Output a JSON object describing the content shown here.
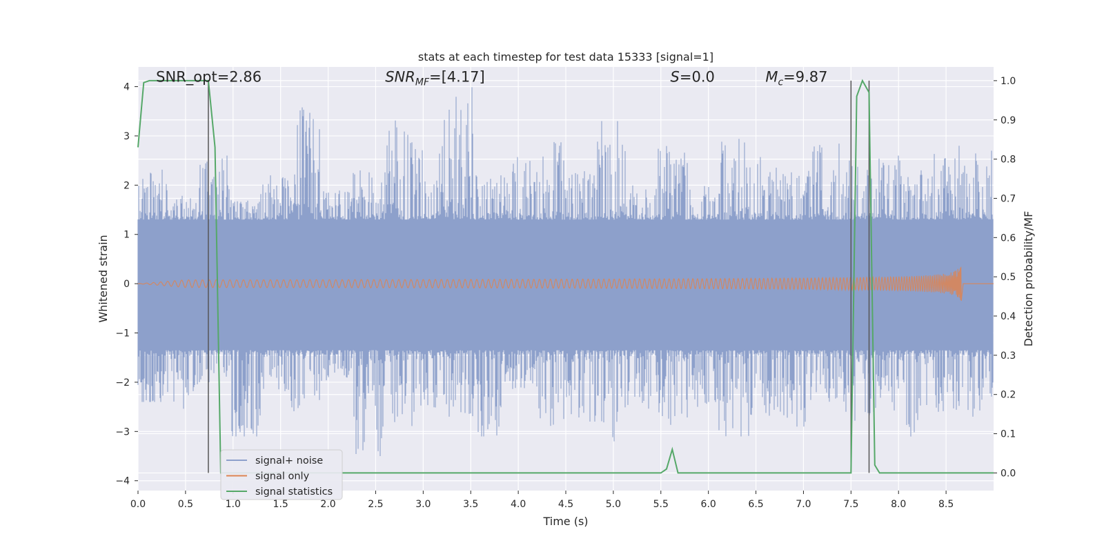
{
  "chart_data": {
    "type": "line",
    "title": "stats at each timestep for test data 15333 [signal=1]",
    "xlabel": "Time (s)",
    "ylabel_left": "Whitened strain",
    "ylabel_right": "Detection probability/MF",
    "xlim": [
      0.0,
      9.0
    ],
    "ylim_left": [
      -4.2,
      4.4
    ],
    "ylim_right": [
      -0.045,
      1.035
    ],
    "x_ticks": [
      0.0,
      0.5,
      1.0,
      1.5,
      2.0,
      2.5,
      3.0,
      3.5,
      4.0,
      4.5,
      5.0,
      5.5,
      6.0,
      6.5,
      7.0,
      7.5,
      8.0,
      8.5
    ],
    "x_tick_labels": [
      "0.0",
      "0.5",
      "1.0",
      "1.5",
      "2.0",
      "2.5",
      "3.0",
      "3.5",
      "4.0",
      "4.5",
      "5.0",
      "5.5",
      "6.0",
      "6.5",
      "7.0",
      "7.5",
      "8.0",
      "8.5"
    ],
    "y_left_ticks": [
      -4,
      -3,
      -2,
      -1,
      0,
      1,
      2,
      3,
      4
    ],
    "y_left_tick_labels": [
      "−4",
      "−3",
      "−2",
      "−1",
      "0",
      "1",
      "2",
      "3",
      "4"
    ],
    "y_right_ticks": [
      0.0,
      0.1,
      0.2,
      0.3,
      0.4,
      0.5,
      0.6,
      0.7,
      0.8,
      0.9,
      1.0
    ],
    "y_right_tick_labels": [
      "0.0",
      "0.1",
      "0.2",
      "0.3",
      "0.4",
      "0.5",
      "0.6",
      "0.7",
      "0.8",
      "0.9",
      "1.0"
    ],
    "grid": true,
    "legend_position": "lower-left",
    "annotations": [
      {
        "id": "snr-opt",
        "text": "SNR_opt=2.86",
        "x": 0.19,
        "y": 4.1
      },
      {
        "id": "snr-mf",
        "text": "SNR_MF=[4.17]",
        "x": 2.6,
        "y": 4.1
      },
      {
        "id": "s-stat",
        "text": "S=0.0",
        "x": 5.6,
        "y": 4.1
      },
      {
        "id": "mc",
        "text": "M_c=9.87",
        "x": 6.6,
        "y": 4.1
      }
    ],
    "markers_x": [
      0.74,
      7.5,
      7.69
    ],
    "series": [
      {
        "name": "signal+ noise",
        "color": "#8da0cb",
        "kind": "noise",
        "core_band": [
          -1.35,
          1.3
        ],
        "spike_sample_max": [
          2.5,
          1.8,
          2.6,
          1.7,
          2.2,
          3.6,
          1.9,
          2.3,
          3.4,
          2.8,
          4.0,
          2.2,
          2.7,
          2.9,
          2.3,
          3.3,
          2.1,
          2.8,
          2.0,
          3.0,
          2.6,
          2.3,
          2.9,
          2.5,
          2.6,
          2.3,
          2.8,
          2.7
        ],
        "spike_sample_min": [
          -2.4,
          -2.6,
          -2.0,
          -3.1,
          -2.2,
          -2.6,
          -2.0,
          -3.5,
          -2.9,
          -2.6,
          -2.7,
          -3.1,
          -2.2,
          -2.9,
          -2.8,
          -3.2,
          -2.6,
          -2.9,
          -2.5,
          -3.1,
          -2.7,
          -2.9,
          -2.4,
          -2.8,
          -2.6,
          -3.2,
          -2.6,
          -2.7
        ]
      },
      {
        "name": "signal only",
        "color": "#dd8452",
        "kind": "chirp",
        "t_start": 0.0,
        "t_end": 8.66,
        "amp_end": 0.35
      },
      {
        "name": "signal statistics",
        "color": "#55a868",
        "axis": "right",
        "x": [
          0.0,
          0.06,
          0.12,
          0.2,
          0.3,
          0.4,
          0.5,
          0.6,
          0.7,
          0.74,
          0.81,
          0.87,
          0.9,
          1.0,
          2.0,
          3.0,
          4.0,
          5.0,
          5.5,
          5.56,
          5.62,
          5.68,
          5.8,
          6.5,
          7.0,
          7.44,
          7.5,
          7.56,
          7.62,
          7.69,
          7.75,
          7.8,
          8.0,
          8.5,
          9.0
        ],
        "y": [
          0.83,
          0.995,
          1.0,
          1.0,
          1.0,
          1.0,
          1.0,
          1.0,
          1.0,
          1.0,
          0.83,
          0.0,
          0.0,
          0.0,
          0.0,
          0.0,
          0.0,
          0.0,
          0.0,
          0.01,
          0.06,
          0.0,
          0.0,
          0.0,
          0.0,
          0.0,
          0.0,
          0.96,
          1.0,
          0.97,
          0.02,
          0.0,
          0.0,
          0.0,
          0.0
        ]
      }
    ],
    "legend_labels": [
      "signal+ noise",
      "signal only",
      "signal statistics"
    ]
  },
  "colors": {
    "plot_bg": "#eaeaf2",
    "grid": "#ffffff",
    "marker": "#555555",
    "noise": "#8da0cb",
    "signal": "#dd8452",
    "stats": "#55a868"
  }
}
